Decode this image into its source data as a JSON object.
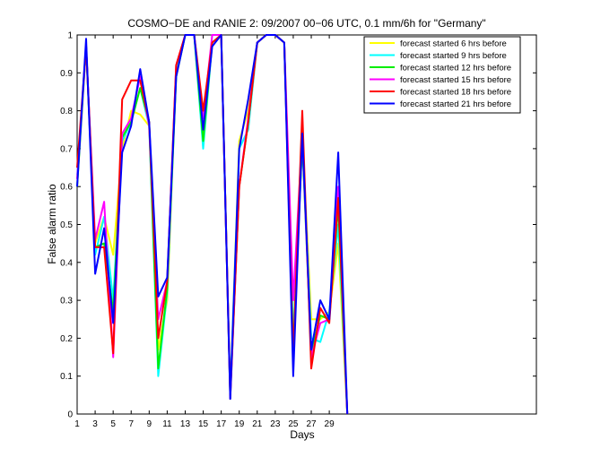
{
  "chart_data": {
    "type": "line",
    "title": "COSMO−DE and RANIE 2: 09/2007 00−06 UTC, 0.1 mm/6h for \"Germany\"",
    "xlabel": "Days",
    "ylabel": "False alarm ratio",
    "xlim": [
      1,
      52
    ],
    "ylim": [
      0,
      1
    ],
    "x_ticks": [
      1,
      3,
      5,
      7,
      9,
      11,
      13,
      15,
      17,
      19,
      21,
      23,
      25,
      27,
      29
    ],
    "y_ticks": [
      0,
      0.1,
      0.2,
      0.3,
      0.4,
      0.5,
      0.6,
      0.7,
      0.8,
      0.9,
      1
    ],
    "y_tick_labels": [
      "0",
      "0.1",
      "0.2",
      "0.3",
      "0.4",
      "0.5",
      "0.6",
      "0.7",
      "0.8",
      "0.9",
      "1"
    ],
    "legend_position": "top-right",
    "grid": false,
    "x": [
      1,
      2,
      3,
      4,
      5,
      6,
      7,
      8,
      9,
      10,
      11,
      12,
      13,
      14,
      15,
      16,
      17,
      18,
      19,
      20,
      21,
      22,
      23,
      24,
      25,
      26,
      27,
      28,
      29,
      30,
      31
    ],
    "series": [
      {
        "name": "forecast started 6 hrs before",
        "color": "#ffff00",
        "values": [
          0.62,
          0.97,
          0.45,
          0.52,
          0.42,
          0.7,
          0.8,
          0.79,
          0.76,
          0.17,
          0.3,
          0.9,
          1.0,
          1.0,
          0.75,
          0.98,
          1.0,
          0.05,
          0.72,
          0.8,
          0.98,
          1.0,
          1.0,
          0.98,
          0.2,
          0.73,
          0.25,
          0.25,
          0.27,
          0.45,
          0.0
        ]
      },
      {
        "name": "forecast started 9 hrs before",
        "color": "#00ffff",
        "values": [
          0.63,
          0.97,
          0.42,
          0.52,
          0.3,
          0.72,
          0.77,
          0.86,
          0.76,
          0.1,
          0.32,
          0.9,
          1.0,
          1.0,
          0.7,
          0.98,
          1.0,
          0.05,
          0.7,
          0.75,
          0.98,
          1.0,
          1.0,
          0.98,
          0.2,
          0.72,
          0.2,
          0.19,
          0.27,
          0.5,
          0.0
        ]
      },
      {
        "name": "forecast started 12 hrs before",
        "color": "#00ee00",
        "values": [
          0.6,
          0.97,
          0.44,
          0.45,
          0.27,
          0.73,
          0.77,
          0.86,
          0.77,
          0.12,
          0.33,
          0.89,
          1.0,
          1.0,
          0.72,
          0.98,
          1.0,
          0.04,
          0.6,
          0.77,
          0.98,
          1.0,
          1.0,
          0.98,
          0.17,
          0.72,
          0.16,
          0.26,
          0.25,
          0.55,
          0.0
        ]
      },
      {
        "name": "forecast started 15 hrs before",
        "color": "#ff00ff",
        "values": [
          0.62,
          0.97,
          0.46,
          0.56,
          0.15,
          0.74,
          0.78,
          0.89,
          0.76,
          0.25,
          0.35,
          0.92,
          1.0,
          1.0,
          0.78,
          1.0,
          1.0,
          0.04,
          0.6,
          0.78,
          0.98,
          1.0,
          1.0,
          0.98,
          0.3,
          0.74,
          0.15,
          0.24,
          0.25,
          0.6,
          0.0
        ]
      },
      {
        "name": "forecast started 18 hrs before",
        "color": "#ff0000",
        "values": [
          0.65,
          0.97,
          0.44,
          0.44,
          0.16,
          0.83,
          0.88,
          0.88,
          0.77,
          0.2,
          0.35,
          0.92,
          1.0,
          1.0,
          0.8,
          0.98,
          1.0,
          0.05,
          0.6,
          0.77,
          0.98,
          1.0,
          1.0,
          0.98,
          0.15,
          0.8,
          0.12,
          0.28,
          0.24,
          0.57,
          0.0
        ]
      },
      {
        "name": "forecast started 21 hrs before",
        "color": "#0000ff",
        "values": [
          0.6,
          0.99,
          0.37,
          0.49,
          0.24,
          0.69,
          0.76,
          0.91,
          0.77,
          0.31,
          0.36,
          0.89,
          1.0,
          1.0,
          0.75,
          0.97,
          1.0,
          0.04,
          0.7,
          0.83,
          0.98,
          1.0,
          1.0,
          0.98,
          0.1,
          0.74,
          0.17,
          0.3,
          0.25,
          0.69,
          0.0
        ]
      }
    ]
  }
}
